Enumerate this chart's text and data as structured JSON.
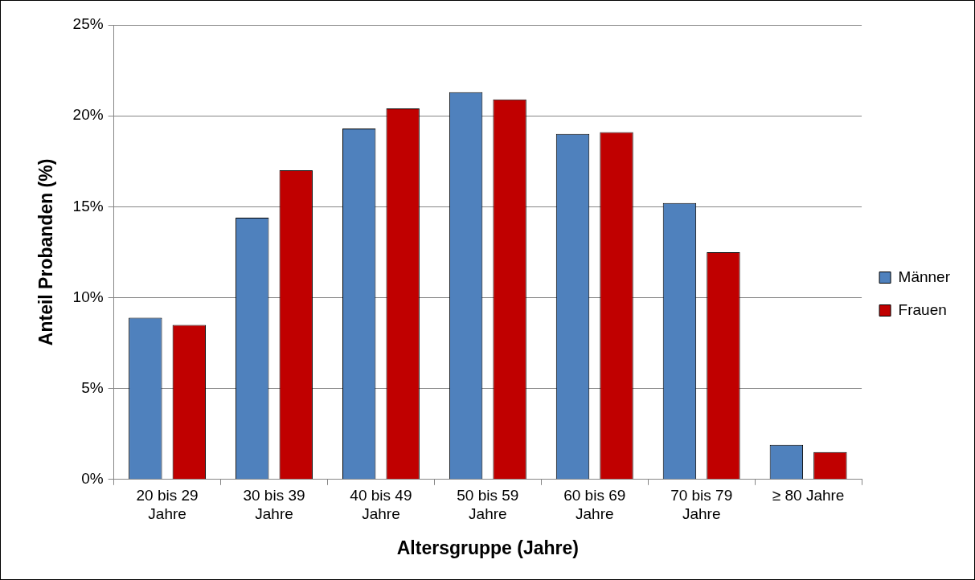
{
  "chart_data": {
    "type": "bar",
    "xlabel": "Altersgruppe (Jahre)",
    "ylabel": "Anteil Probanden (%)",
    "categories": [
      "20 bis 29 Jahre",
      "30 bis 39 Jahre",
      "40 bis 49 Jahre",
      "50 bis 59 Jahre",
      "60 bis 69 Jahre",
      "70 bis 79 Jahre",
      "≥ 80 Jahre"
    ],
    "series": [
      {
        "name": "Männer",
        "color": "#4f81bd",
        "values": [
          8.9,
          14.4,
          19.3,
          21.3,
          19.0,
          15.2,
          1.9
        ]
      },
      {
        "name": "Frauen",
        "color": "#c00000",
        "values": [
          8.5,
          17.0,
          20.4,
          20.9,
          19.1,
          12.5,
          1.5
        ]
      }
    ],
    "ylim": [
      0,
      25
    ],
    "yticks": [
      {
        "value": 0,
        "label": "0%"
      },
      {
        "value": 5,
        "label": "5%"
      },
      {
        "value": 10,
        "label": "10%"
      },
      {
        "value": 15,
        "label": "15%"
      },
      {
        "value": 20,
        "label": "20%"
      },
      {
        "value": 25,
        "label": "25%"
      }
    ],
    "grid": "y",
    "legend": "right"
  }
}
